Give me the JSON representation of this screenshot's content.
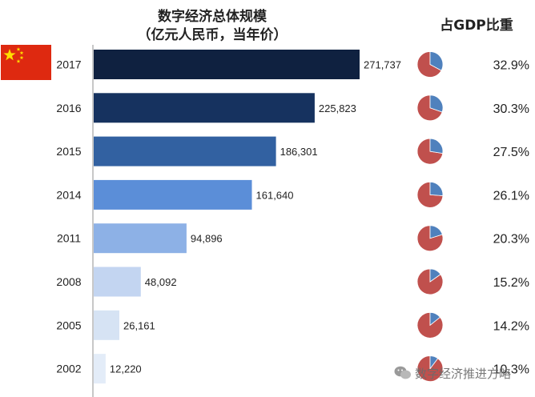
{
  "header": {
    "title_line1": "数字经济总体规模",
    "title_line2": "（亿元人民币，当年价）",
    "share_title": "占GDP比重"
  },
  "watermark": {
    "text": "数字经济推进方略",
    "icon": "wechat-icon"
  },
  "colors": {
    "pie_main": "#c0504d",
    "pie_share": "#4f81bd",
    "flag_red": "#de2910",
    "flag_star": "#ffde00"
  },
  "chart_data": {
    "type": "bar",
    "orientation": "horizontal",
    "title": "数字经济总体规模",
    "subtitle": "（亿元人民币，当年价）",
    "categories": [
      "2017",
      "2016",
      "2015",
      "2014",
      "2011",
      "2008",
      "2005",
      "2002"
    ],
    "values": [
      271737,
      225823,
      186301,
      161640,
      94896,
      48092,
      26161,
      12220
    ],
    "value_labels": [
      "271,737",
      "225,823",
      "186,301",
      "161,640",
      "94,896",
      "48,092",
      "26,161",
      "12,220"
    ],
    "bar_colors": [
      "#0f2140",
      "#16325f",
      "#3261a1",
      "#5b8ed8",
      "#8db1e6",
      "#c3d5f1",
      "#d6e3f4",
      "#e3ecf8"
    ],
    "xlim": [
      0,
      271737
    ],
    "grid": false,
    "gdp_share": {
      "title": "占GDP比重",
      "type": "pie",
      "values": [
        32.9,
        30.3,
        27.5,
        26.1,
        20.3,
        15.2,
        14.2,
        10.3
      ],
      "labels": [
        "32.9%",
        "30.3%",
        "27.5%",
        "26.1%",
        "20.3%",
        "15.2%",
        "14.2%",
        "10.3%"
      ]
    }
  }
}
